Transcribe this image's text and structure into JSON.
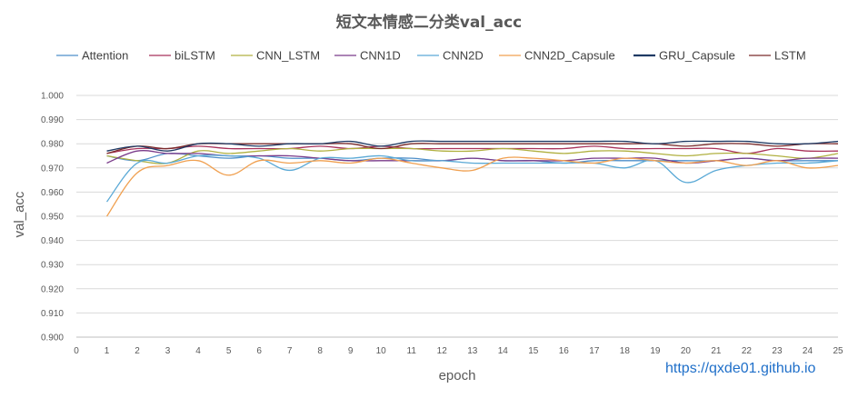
{
  "chart_data": {
    "type": "line",
    "title": "短文本情感二分类val_acc",
    "xlabel": "epoch",
    "ylabel": "val_acc",
    "xlim": [
      0,
      25
    ],
    "ylim": [
      0.9,
      1.0
    ],
    "xticks": [
      "0",
      "1",
      "2",
      "3",
      "4",
      "5",
      "6",
      "7",
      "8",
      "9",
      "10",
      "11",
      "12",
      "13",
      "14",
      "15",
      "16",
      "17",
      "18",
      "19",
      "20",
      "21",
      "22",
      "23",
      "24",
      "25"
    ],
    "yticks": [
      "0.900",
      "0.910",
      "0.920",
      "0.930",
      "0.940",
      "0.950",
      "0.960",
      "0.970",
      "0.980",
      "0.990",
      "1.000"
    ],
    "grid": "horizontal",
    "legend_position": "top",
    "x": [
      1,
      2,
      3,
      4,
      5,
      6,
      7,
      8,
      9,
      10,
      11,
      12,
      13,
      14,
      15,
      16,
      17,
      18,
      19,
      20,
      21,
      22,
      23,
      24,
      25
    ],
    "series": [
      {
        "name": "Attention",
        "color": "#4e8fc9",
        "width": 1.3,
        "values": [
          0.975,
          0.973,
          0.976,
          0.975,
          0.974,
          0.975,
          0.974,
          0.974,
          0.973,
          0.974,
          0.974,
          0.973,
          0.974,
          0.973,
          0.973,
          0.972,
          0.973,
          0.973,
          0.973,
          0.973,
          0.973,
          0.974,
          0.973,
          0.973,
          0.973
        ]
      },
      {
        "name": "biLSTM",
        "color": "#a8325a",
        "width": 1.3,
        "values": [
          0.976,
          0.978,
          0.978,
          0.979,
          0.978,
          0.978,
          0.978,
          0.979,
          0.978,
          0.979,
          0.978,
          0.978,
          0.978,
          0.978,
          0.978,
          0.978,
          0.979,
          0.978,
          0.978,
          0.978,
          0.978,
          0.976,
          0.978,
          0.977,
          0.977
        ]
      },
      {
        "name": "CNN_LSTM",
        "color": "#b0b040",
        "width": 1.3,
        "values": [
          0.975,
          0.973,
          0.972,
          0.977,
          0.976,
          0.977,
          0.978,
          0.977,
          0.978,
          0.978,
          0.978,
          0.977,
          0.977,
          0.978,
          0.977,
          0.976,
          0.977,
          0.977,
          0.976,
          0.975,
          0.976,
          0.976,
          0.975,
          0.974,
          0.976
        ]
      },
      {
        "name": "CNN1D",
        "color": "#7a3b8a",
        "width": 1.3,
        "values": [
          0.972,
          0.977,
          0.976,
          0.976,
          0.975,
          0.975,
          0.975,
          0.974,
          0.973,
          0.973,
          0.973,
          0.973,
          0.974,
          0.973,
          0.973,
          0.973,
          0.974,
          0.974,
          0.974,
          0.972,
          0.973,
          0.974,
          0.973,
          0.974,
          0.974
        ]
      },
      {
        "name": "CNN2D",
        "color": "#5aa9d6",
        "width": 1.3,
        "values": [
          0.956,
          0.972,
          0.972,
          0.975,
          0.975,
          0.974,
          0.969,
          0.974,
          0.974,
          0.975,
          0.973,
          0.973,
          0.972,
          0.972,
          0.972,
          0.972,
          0.972,
          0.97,
          0.973,
          0.964,
          0.969,
          0.971,
          0.972,
          0.972,
          0.973
        ]
      },
      {
        "name": "CNN2D_Capsule",
        "color": "#f0a050",
        "width": 1.3,
        "values": [
          0.95,
          0.968,
          0.971,
          0.973,
          0.967,
          0.973,
          0.972,
          0.973,
          0.972,
          0.974,
          0.972,
          0.97,
          0.969,
          0.974,
          0.974,
          0.973,
          0.972,
          0.974,
          0.973,
          0.972,
          0.973,
          0.971,
          0.973,
          0.97,
          0.971
        ]
      },
      {
        "name": "GRU_Capsule",
        "color": "#1f3a64",
        "width": 2.2,
        "values": [
          0.977,
          0.979,
          0.977,
          0.98,
          0.98,
          0.979,
          0.98,
          0.98,
          0.981,
          0.979,
          0.981,
          0.981,
          0.981,
          0.981,
          0.981,
          0.981,
          0.981,
          0.981,
          0.98,
          0.981,
          0.981,
          0.981,
          0.98,
          0.98,
          0.981
        ]
      },
      {
        "name": "LSTM",
        "color": "#7a2b2b",
        "width": 1.3,
        "values": [
          0.976,
          0.979,
          0.978,
          0.98,
          0.98,
          0.98,
          0.98,
          0.98,
          0.98,
          0.978,
          0.98,
          0.98,
          0.98,
          0.98,
          0.98,
          0.98,
          0.98,
          0.98,
          0.98,
          0.979,
          0.98,
          0.98,
          0.979,
          0.98,
          0.98
        ]
      }
    ]
  },
  "watermark": "https://qxde01.github.io"
}
